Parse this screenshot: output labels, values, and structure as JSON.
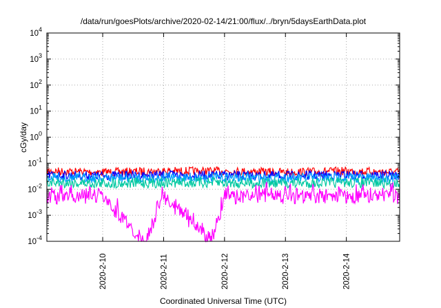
{
  "chart_data": {
    "type": "line",
    "title": "/data/run/goesPlots/archive/2020-02-14/21:00/flux/../bryn/5daysEarthData.plot",
    "xlabel": "Coordinated Universal Time (UTC)",
    "ylabel": "cGy/day",
    "yscale": "log",
    "ylim": [
      0.0001,
      10000
    ],
    "xlim": [
      "2020-02-09 02:00",
      "2020-02-14 21:00"
    ],
    "grid": true,
    "legend": "none",
    "y_ticks": [
      {
        "value": 0.0001,
        "base": "10",
        "exp": "-4"
      },
      {
        "value": 0.001,
        "base": "10",
        "exp": "-3"
      },
      {
        "value": 0.01,
        "base": "10",
        "exp": "-2"
      },
      {
        "value": 0.1,
        "base": "10",
        "exp": "-1"
      },
      {
        "value": 1,
        "base": "10",
        "exp": "0"
      },
      {
        "value": 10,
        "base": "10",
        "exp": "1"
      },
      {
        "value": 100,
        "base": "10",
        "exp": "2"
      },
      {
        "value": 1000,
        "base": "10",
        "exp": "3"
      },
      {
        "value": 10000,
        "base": "10",
        "exp": "4"
      }
    ],
    "x_ticks": [
      "2020-2-10",
      "2020-2-11",
      "2020-2-12",
      "2020-2-13",
      "2020-2-14"
    ],
    "series": [
      {
        "color": "#ff0000",
        "x": [
          "2020-02-09 02:00",
          "2020-02-10 00:00",
          "2020-02-11 00:00",
          "2020-02-12 00:00",
          "2020-02-13 00:00",
          "2020-02-14 00:00",
          "2020-02-14 21:00"
        ],
        "values": [
          0.05,
          0.045,
          0.05,
          0.05,
          0.045,
          0.05,
          0.045
        ]
      },
      {
        "color": "#0000ff",
        "x": [
          "2020-02-09 02:00",
          "2020-02-10 00:00",
          "2020-02-11 00:00",
          "2020-02-12 00:00",
          "2020-02-13 00:00",
          "2020-02-14 00:00",
          "2020-02-14 21:00"
        ],
        "values": [
          0.035,
          0.033,
          0.035,
          0.034,
          0.033,
          0.035,
          0.034
        ]
      },
      {
        "color": "#00a0ff",
        "x": [
          "2020-02-09 02:00",
          "2020-02-10 00:00",
          "2020-02-11 00:00",
          "2020-02-12 00:00",
          "2020-02-13 00:00",
          "2020-02-14 00:00",
          "2020-02-14 21:00"
        ],
        "values": [
          0.028,
          0.027,
          0.028,
          0.028,
          0.027,
          0.028,
          0.027
        ]
      },
      {
        "color": "#00c8a0",
        "x": [
          "2020-02-09 02:00",
          "2020-02-10 00:00",
          "2020-02-11 00:00",
          "2020-02-12 00:00",
          "2020-02-13 00:00",
          "2020-02-14 00:00",
          "2020-02-14 21:00"
        ],
        "values": [
          0.018,
          0.017,
          0.018,
          0.018,
          0.017,
          0.018,
          0.017
        ]
      },
      {
        "color": "#ff00ff",
        "x": [
          "2020-02-09 02:00",
          "2020-02-10 00:00",
          "2020-02-10 16:00",
          "2020-02-10 17:00",
          "2020-02-11 00:00",
          "2020-02-11 19:00",
          "2020-02-12 00:00",
          "2020-02-13 00:00",
          "2020-02-14 00:00",
          "2020-02-14 21:00"
        ],
        "values": [
          0.005,
          0.005,
          0.0001,
          0.0001,
          0.005,
          0.0001,
          0.005,
          0.005,
          0.005,
          0.005
        ]
      }
    ]
  }
}
